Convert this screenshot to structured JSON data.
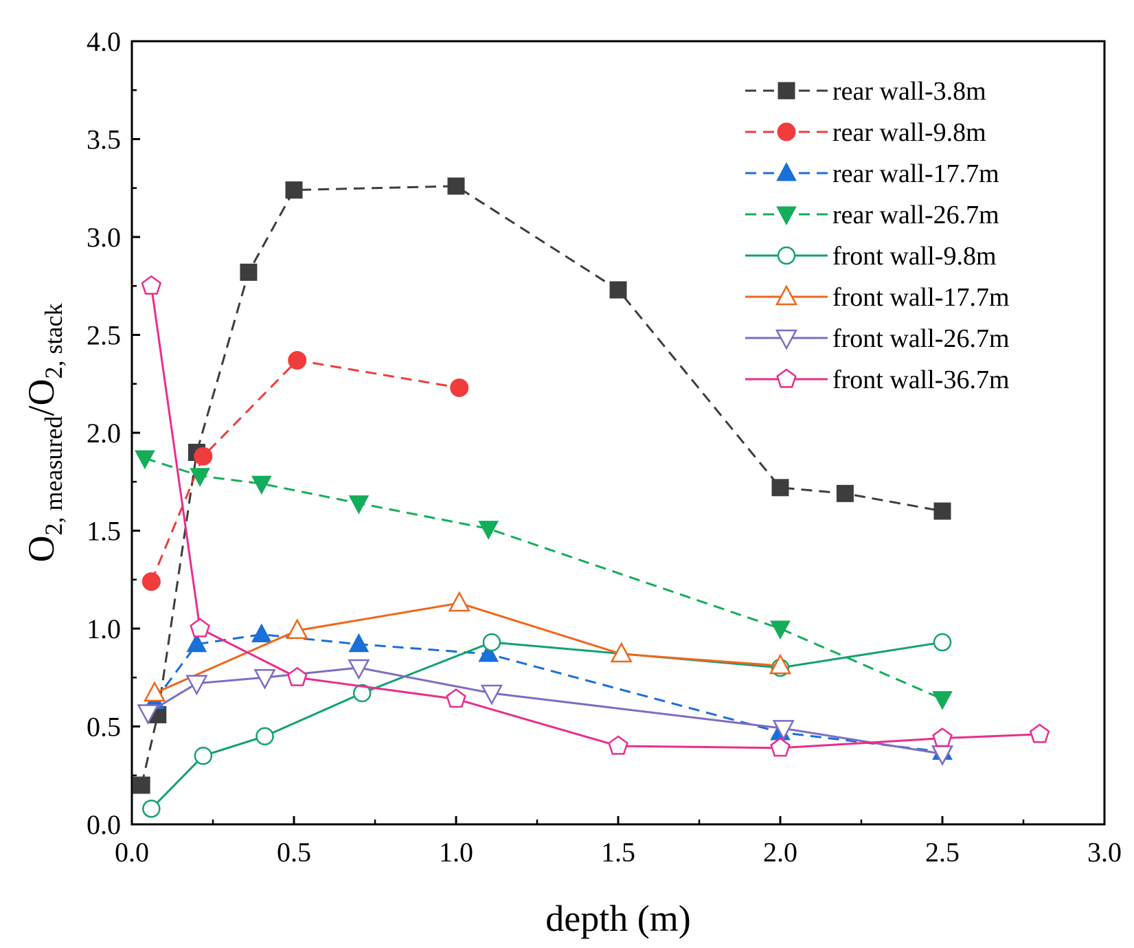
{
  "chart_data": {
    "type": "line",
    "title": "",
    "xlabel": "depth (m)",
    "ylabel": {
      "base": "O",
      "sub1": "2, measured",
      "slash": "/O",
      "sub2": "2, stack"
    },
    "xlim": [
      0.0,
      3.0
    ],
    "ylim": [
      0.0,
      4.0
    ],
    "xticks": [
      "0.0",
      "0.5",
      "1.0",
      "1.5",
      "2.0",
      "2.5",
      "3.0"
    ],
    "yticks": [
      "0.0",
      "0.5",
      "1.0",
      "1.5",
      "2.0",
      "2.5",
      "3.0",
      "3.5",
      "4.0"
    ],
    "grid": false,
    "legend_position": "top-right",
    "series": [
      {
        "name": "rear wall-3.8m",
        "color": "#3d3d3d",
        "line": "dashed",
        "marker": "square",
        "filled": true,
        "x": [
          0.03,
          0.08,
          0.2,
          0.36,
          0.5,
          1.0,
          1.5,
          2.0,
          2.2,
          2.5
        ],
        "y": [
          0.2,
          0.56,
          1.9,
          2.82,
          3.24,
          3.26,
          2.73,
          1.72,
          1.69,
          1.6
        ]
      },
      {
        "name": "rear wall-9.8m",
        "color": "#f03c3c",
        "line": "dashed",
        "marker": "circle",
        "filled": true,
        "x": [
          0.06,
          0.22,
          0.51,
          1.01
        ],
        "y": [
          1.24,
          1.88,
          2.37,
          2.23
        ]
      },
      {
        "name": "rear wall-17.7m",
        "color": "#1a6fd8",
        "line": "dashed",
        "marker": "triangle-up",
        "filled": true,
        "x": [
          0.07,
          0.2,
          0.4,
          0.7,
          1.1,
          2.0,
          2.5
        ],
        "y": [
          0.63,
          0.92,
          0.97,
          0.92,
          0.87,
          0.47,
          0.37
        ]
      },
      {
        "name": "rear wall-26.7m",
        "color": "#14ad5a",
        "line": "dashed",
        "marker": "triangle-down",
        "filled": true,
        "x": [
          0.04,
          0.21,
          0.4,
          0.7,
          1.1,
          2.0,
          2.5
        ],
        "y": [
          1.87,
          1.78,
          1.74,
          1.64,
          1.51,
          1.0,
          0.64
        ]
      },
      {
        "name": "front wall-9.8m",
        "color": "#12a172",
        "line": "solid",
        "marker": "circle",
        "filled": false,
        "x": [
          0.06,
          0.22,
          0.41,
          0.71,
          1.11,
          2.0,
          2.5
        ],
        "y": [
          0.08,
          0.35,
          0.45,
          0.67,
          0.93,
          0.8,
          0.93
        ]
      },
      {
        "name": "front wall-17.7m",
        "color": "#f0661a",
        "line": "solid",
        "marker": "triangle-up",
        "filled": false,
        "x": [
          0.07,
          0.51,
          1.01,
          1.51,
          2.0
        ],
        "y": [
          0.67,
          0.99,
          1.13,
          0.87,
          0.81
        ]
      },
      {
        "name": "front wall-26.7m",
        "color": "#7e6cc4",
        "line": "solid",
        "marker": "triangle-down",
        "filled": false,
        "x": [
          0.05,
          0.2,
          0.41,
          0.7,
          1.11,
          2.01,
          2.5
        ],
        "y": [
          0.57,
          0.72,
          0.75,
          0.8,
          0.67,
          0.49,
          0.36
        ]
      },
      {
        "name": "front wall-36.7m",
        "color": "#ec2c8c",
        "line": "solid",
        "marker": "pentagon",
        "filled": false,
        "x": [
          0.06,
          0.21,
          0.51,
          1.0,
          1.5,
          2.0,
          2.5,
          2.8
        ],
        "y": [
          2.75,
          1.0,
          0.75,
          0.64,
          0.4,
          0.39,
          0.44,
          0.46
        ]
      }
    ]
  }
}
